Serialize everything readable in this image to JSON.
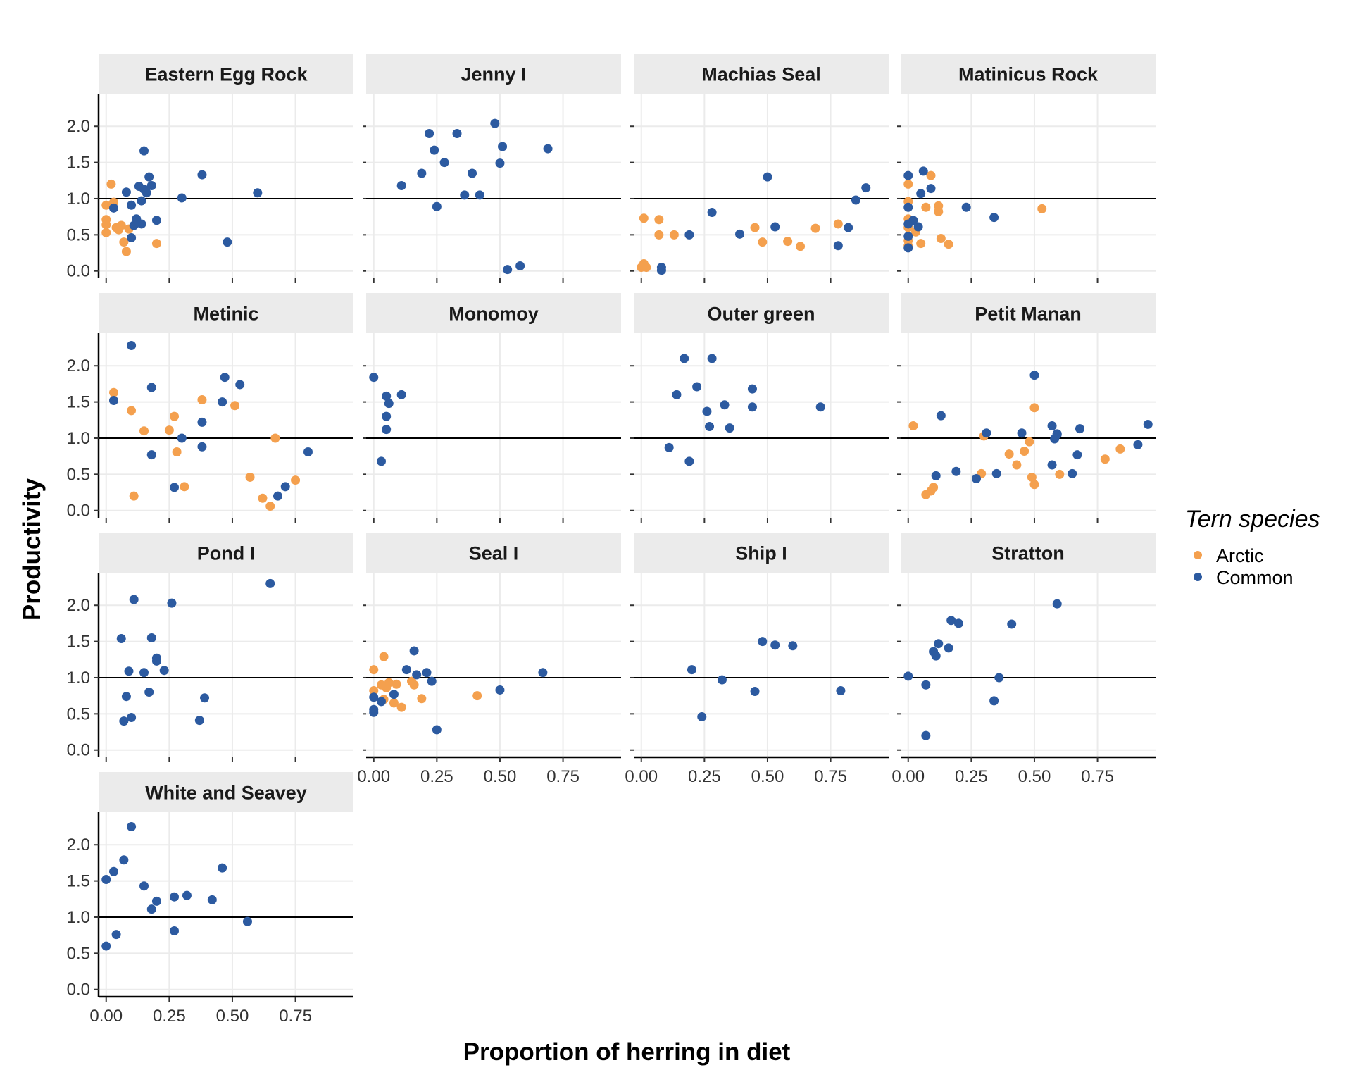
{
  "chart_data": {
    "type": "scatter",
    "xlabel": "Proportion of herring in diet",
    "ylabel": "Productivity",
    "xlim": [
      -0.03,
      0.98
    ],
    "ylim": [
      -0.1,
      2.45
    ],
    "x_ticks": [
      0,
      0.25,
      0.5,
      0.75
    ],
    "x_tick_labels": [
      "0.00",
      "0.25",
      "0.50",
      "0.75"
    ],
    "y_ticks": [
      0,
      0.5,
      1,
      1.5,
      2
    ],
    "y_tick_labels": [
      "0.0",
      "0.5",
      "1.0",
      "1.5",
      "2.0"
    ],
    "reference_line_y": 1.0,
    "legend": {
      "title": "Tern species",
      "position": "right",
      "entries": [
        {
          "name": "Arctic",
          "color": "#F4A04E"
        },
        {
          "name": "Common",
          "color": "#2C5AA0"
        }
      ]
    },
    "panels": [
      {
        "title": "Eastern Egg Rock",
        "arctic": [
          [
            0.0,
            0.91
          ],
          [
            0.0,
            0.71
          ],
          [
            0.0,
            0.64
          ],
          [
            0.0,
            0.53
          ],
          [
            0.02,
            1.2
          ],
          [
            0.03,
            0.95
          ],
          [
            0.04,
            0.6
          ],
          [
            0.05,
            0.57
          ],
          [
            0.06,
            0.63
          ],
          [
            0.07,
            0.4
          ],
          [
            0.08,
            0.27
          ],
          [
            0.09,
            0.58
          ],
          [
            0.2,
            0.38
          ]
        ],
        "common": [
          [
            0.03,
            0.87
          ],
          [
            0.08,
            1.09
          ],
          [
            0.1,
            0.91
          ],
          [
            0.1,
            0.46
          ],
          [
            0.11,
            0.63
          ],
          [
            0.12,
            0.72
          ],
          [
            0.13,
            1.17
          ],
          [
            0.14,
            0.97
          ],
          [
            0.14,
            0.65
          ],
          [
            0.15,
            1.66
          ],
          [
            0.16,
            1.08
          ],
          [
            0.17,
            1.3
          ],
          [
            0.18,
            1.18
          ],
          [
            0.2,
            0.7
          ],
          [
            0.3,
            1.01
          ],
          [
            0.38,
            1.33
          ],
          [
            0.48,
            0.4
          ],
          [
            0.6,
            1.08
          ],
          [
            0.15,
            1.13
          ]
        ]
      },
      {
        "title": "Jenny I",
        "arctic": [],
        "common": [
          [
            0.11,
            1.18
          ],
          [
            0.19,
            1.35
          ],
          [
            0.22,
            1.9
          ],
          [
            0.24,
            1.67
          ],
          [
            0.25,
            0.89
          ],
          [
            0.28,
            1.5
          ],
          [
            0.33,
            1.9
          ],
          [
            0.36,
            1.05
          ],
          [
            0.39,
            1.35
          ],
          [
            0.42,
            1.05
          ],
          [
            0.48,
            2.04
          ],
          [
            0.5,
            1.49
          ],
          [
            0.51,
            1.72
          ],
          [
            0.53,
            0.02
          ],
          [
            0.58,
            0.07
          ],
          [
            0.69,
            1.69
          ]
        ]
      },
      {
        "title": "Machias Seal",
        "arctic": [
          [
            0.0,
            0.05
          ],
          [
            0.01,
            0.1
          ],
          [
            0.01,
            0.73
          ],
          [
            0.02,
            0.05
          ],
          [
            0.07,
            0.71
          ],
          [
            0.07,
            0.5
          ],
          [
            0.13,
            0.5
          ],
          [
            0.45,
            0.6
          ],
          [
            0.48,
            0.4
          ],
          [
            0.58,
            0.41
          ],
          [
            0.63,
            0.34
          ],
          [
            0.69,
            0.59
          ],
          [
            0.78,
            0.65
          ]
        ],
        "common": [
          [
            0.08,
            0.05
          ],
          [
            0.08,
            0.01
          ],
          [
            0.19,
            0.5
          ],
          [
            0.28,
            0.81
          ],
          [
            0.39,
            0.51
          ],
          [
            0.5,
            1.3
          ],
          [
            0.53,
            0.61
          ],
          [
            0.78,
            0.35
          ],
          [
            0.82,
            0.6
          ],
          [
            0.85,
            0.98
          ],
          [
            0.89,
            1.15
          ]
        ]
      },
      {
        "title": "Matinicus Rock",
        "arctic": [
          [
            0.0,
            1.2
          ],
          [
            0.0,
            0.96
          ],
          [
            0.0,
            0.72
          ],
          [
            0.0,
            0.6
          ],
          [
            0.0,
            0.42
          ],
          [
            0.0,
            0.35
          ],
          [
            0.01,
            0.7
          ],
          [
            0.03,
            0.54
          ],
          [
            0.05,
            0.38
          ],
          [
            0.07,
            0.88
          ],
          [
            0.09,
            1.32
          ],
          [
            0.12,
            0.9
          ],
          [
            0.12,
            0.82
          ],
          [
            0.13,
            0.45
          ],
          [
            0.16,
            0.37
          ],
          [
            0.53,
            0.86
          ]
        ],
        "common": [
          [
            0.0,
            1.32
          ],
          [
            0.0,
            0.88
          ],
          [
            0.0,
            0.65
          ],
          [
            0.0,
            0.48
          ],
          [
            0.0,
            0.32
          ],
          [
            0.02,
            0.7
          ],
          [
            0.04,
            0.61
          ],
          [
            0.05,
            1.07
          ],
          [
            0.06,
            1.38
          ],
          [
            0.09,
            1.14
          ],
          [
            0.23,
            0.88
          ],
          [
            0.34,
            0.74
          ]
        ]
      },
      {
        "title": "Metinic",
        "arctic": [
          [
            0.03,
            1.63
          ],
          [
            0.1,
            1.38
          ],
          [
            0.11,
            0.2
          ],
          [
            0.15,
            1.1
          ],
          [
            0.25,
            1.11
          ],
          [
            0.27,
            1.3
          ],
          [
            0.28,
            0.81
          ],
          [
            0.31,
            0.33
          ],
          [
            0.38,
            1.53
          ],
          [
            0.51,
            1.45
          ],
          [
            0.57,
            0.46
          ],
          [
            0.62,
            0.17
          ],
          [
            0.65,
            0.06
          ],
          [
            0.67,
            1.0
          ],
          [
            0.75,
            0.42
          ]
        ],
        "common": [
          [
            0.03,
            1.52
          ],
          [
            0.1,
            2.28
          ],
          [
            0.18,
            1.7
          ],
          [
            0.18,
            0.77
          ],
          [
            0.27,
            0.32
          ],
          [
            0.3,
            1.0
          ],
          [
            0.38,
            1.22
          ],
          [
            0.38,
            0.88
          ],
          [
            0.46,
            1.5
          ],
          [
            0.47,
            1.84
          ],
          [
            0.53,
            1.74
          ],
          [
            0.68,
            0.2
          ],
          [
            0.71,
            0.33
          ],
          [
            0.8,
            0.81
          ]
        ]
      },
      {
        "title": "Monomoy",
        "arctic": [],
        "common": [
          [
            0.0,
            1.84
          ],
          [
            0.03,
            0.68
          ],
          [
            0.05,
            1.58
          ],
          [
            0.05,
            1.3
          ],
          [
            0.05,
            1.12
          ],
          [
            0.06,
            1.48
          ],
          [
            0.11,
            1.6
          ]
        ]
      },
      {
        "title": "Outer green",
        "arctic": [],
        "common": [
          [
            0.11,
            0.87
          ],
          [
            0.14,
            1.6
          ],
          [
            0.17,
            2.1
          ],
          [
            0.19,
            0.68
          ],
          [
            0.22,
            1.71
          ],
          [
            0.26,
            1.37
          ],
          [
            0.27,
            1.16
          ],
          [
            0.28,
            2.1
          ],
          [
            0.33,
            1.46
          ],
          [
            0.35,
            1.14
          ],
          [
            0.44,
            1.68
          ],
          [
            0.44,
            1.43
          ],
          [
            0.71,
            1.43
          ]
        ]
      },
      {
        "title": "Petit Manan",
        "arctic": [
          [
            0.02,
            1.17
          ],
          [
            0.07,
            0.22
          ],
          [
            0.09,
            0.27
          ],
          [
            0.1,
            0.32
          ],
          [
            0.29,
            0.51
          ],
          [
            0.3,
            1.03
          ],
          [
            0.4,
            0.78
          ],
          [
            0.43,
            0.63
          ],
          [
            0.46,
            0.82
          ],
          [
            0.48,
            0.95
          ],
          [
            0.49,
            0.46
          ],
          [
            0.5,
            1.42
          ],
          [
            0.5,
            0.36
          ],
          [
            0.6,
            0.5
          ],
          [
            0.78,
            0.71
          ],
          [
            0.84,
            0.85
          ]
        ],
        "common": [
          [
            0.11,
            0.48
          ],
          [
            0.13,
            1.31
          ],
          [
            0.19,
            0.54
          ],
          [
            0.27,
            0.44
          ],
          [
            0.31,
            1.07
          ],
          [
            0.35,
            0.51
          ],
          [
            0.45,
            1.07
          ],
          [
            0.5,
            1.87
          ],
          [
            0.57,
            1.17
          ],
          [
            0.57,
            0.63
          ],
          [
            0.58,
            0.99
          ],
          [
            0.59,
            1.06
          ],
          [
            0.59,
            1.05
          ],
          [
            0.65,
            0.51
          ],
          [
            0.67,
            0.77
          ],
          [
            0.68,
            1.13
          ],
          [
            0.91,
            0.91
          ],
          [
            0.95,
            1.19
          ]
        ]
      },
      {
        "title": "Pond I",
        "arctic": [],
        "common": [
          [
            0.06,
            1.54
          ],
          [
            0.07,
            0.4
          ],
          [
            0.08,
            0.74
          ],
          [
            0.09,
            1.09
          ],
          [
            0.1,
            0.45
          ],
          [
            0.11,
            2.08
          ],
          [
            0.15,
            1.07
          ],
          [
            0.17,
            0.8
          ],
          [
            0.18,
            1.55
          ],
          [
            0.2,
            1.27
          ],
          [
            0.2,
            1.23
          ],
          [
            0.23,
            1.1
          ],
          [
            0.26,
            2.03
          ],
          [
            0.37,
            0.41
          ],
          [
            0.39,
            0.72
          ],
          [
            0.65,
            2.3
          ]
        ]
      },
      {
        "title": "Seal I",
        "arctic": [
          [
            0.0,
            1.11
          ],
          [
            0.0,
            0.82
          ],
          [
            0.03,
            0.9
          ],
          [
            0.04,
            0.7
          ],
          [
            0.04,
            1.29
          ],
          [
            0.05,
            0.86
          ],
          [
            0.06,
            0.93
          ],
          [
            0.08,
            0.65
          ],
          [
            0.09,
            0.91
          ],
          [
            0.11,
            0.59
          ],
          [
            0.15,
            0.95
          ],
          [
            0.16,
            0.9
          ],
          [
            0.19,
            0.71
          ],
          [
            0.41,
            0.75
          ]
        ],
        "common": [
          [
            0.0,
            0.73
          ],
          [
            0.0,
            0.56
          ],
          [
            0.0,
            0.52
          ],
          [
            0.03,
            0.67
          ],
          [
            0.08,
            0.77
          ],
          [
            0.13,
            1.11
          ],
          [
            0.16,
            1.37
          ],
          [
            0.17,
            1.04
          ],
          [
            0.21,
            1.07
          ],
          [
            0.23,
            0.95
          ],
          [
            0.25,
            0.28
          ],
          [
            0.5,
            0.83
          ],
          [
            0.67,
            1.07
          ]
        ]
      },
      {
        "title": "Ship I",
        "arctic": [],
        "common": [
          [
            0.2,
            1.11
          ],
          [
            0.24,
            0.46
          ],
          [
            0.32,
            0.97
          ],
          [
            0.45,
            0.81
          ],
          [
            0.48,
            1.5
          ],
          [
            0.53,
            1.45
          ],
          [
            0.6,
            1.44
          ],
          [
            0.79,
            0.82
          ]
        ]
      },
      {
        "title": "Stratton",
        "arctic": [],
        "common": [
          [
            0.0,
            1.02
          ],
          [
            0.07,
            0.9
          ],
          [
            0.07,
            0.2
          ],
          [
            0.1,
            1.36
          ],
          [
            0.11,
            1.3
          ],
          [
            0.12,
            1.47
          ],
          [
            0.16,
            1.41
          ],
          [
            0.17,
            1.79
          ],
          [
            0.2,
            1.75
          ],
          [
            0.34,
            0.68
          ],
          [
            0.36,
            1.0
          ],
          [
            0.41,
            1.74
          ],
          [
            0.59,
            2.02
          ]
        ]
      },
      {
        "title": "White and Seavey",
        "arctic": [],
        "common": [
          [
            0.0,
            1.52
          ],
          [
            0.0,
            0.6
          ],
          [
            0.03,
            1.63
          ],
          [
            0.04,
            0.76
          ],
          [
            0.07,
            1.79
          ],
          [
            0.1,
            2.25
          ],
          [
            0.15,
            1.43
          ],
          [
            0.18,
            1.11
          ],
          [
            0.2,
            1.22
          ],
          [
            0.27,
            1.28
          ],
          [
            0.27,
            0.81
          ],
          [
            0.32,
            1.3
          ],
          [
            0.42,
            1.24
          ],
          [
            0.46,
            1.68
          ],
          [
            0.56,
            0.94
          ]
        ]
      }
    ]
  }
}
